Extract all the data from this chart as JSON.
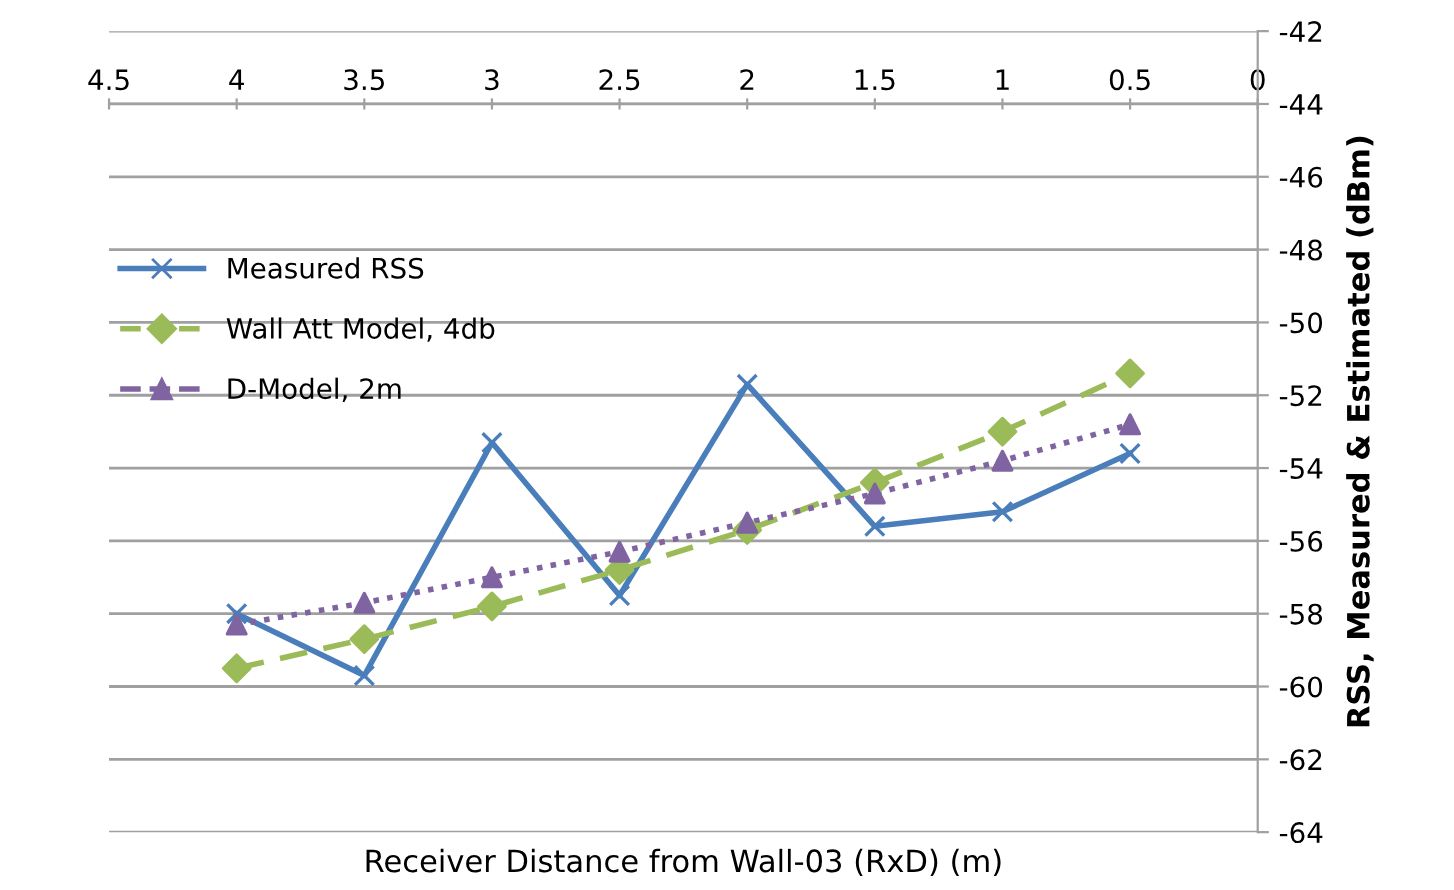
{
  "chart_data": {
    "type": "line",
    "xlabel": "Receiver Distance from Wall-03 (RxD) (m)",
    "ylabel": "RSS, Measured & Estimated (dBm)",
    "x": [
      4,
      3.5,
      3,
      2.5,
      2,
      1.5,
      1,
      0.5
    ],
    "series": [
      {
        "name": "Measured RSS",
        "color": "#4a7ebb",
        "marker": "cross",
        "line_style": "solid",
        "values": [
          -58.0,
          -59.7,
          -53.3,
          -57.5,
          -51.7,
          -55.6,
          -55.2,
          -53.6
        ]
      },
      {
        "name": "Wall Att Model, 4db",
        "color": "#9bbb59",
        "marker": "diamond",
        "line_style": "dashed",
        "values": [
          -59.5,
          -58.7,
          -57.8,
          -56.8,
          -55.7,
          -54.4,
          -53.0,
          -51.4
        ]
      },
      {
        "name": "D-Model, 2m",
        "color": "#8064a2",
        "marker": "triangle",
        "line_style": "dotted",
        "values": [
          -58.3,
          -57.7,
          -57.0,
          -56.3,
          -55.5,
          -54.7,
          -53.8,
          -52.8
        ]
      }
    ],
    "xlim": [
      4.5,
      0
    ],
    "xticks": [
      4.5,
      4,
      3.5,
      3,
      2.5,
      2,
      1.5,
      1,
      0.5,
      0
    ],
    "ylim": [
      -64,
      -42
    ],
    "yticks": [
      -64,
      -62,
      -60,
      -58,
      -56,
      -54,
      -52,
      -50,
      -48,
      -46,
      -44,
      -42
    ],
    "grid": "y",
    "legend": "top left"
  }
}
